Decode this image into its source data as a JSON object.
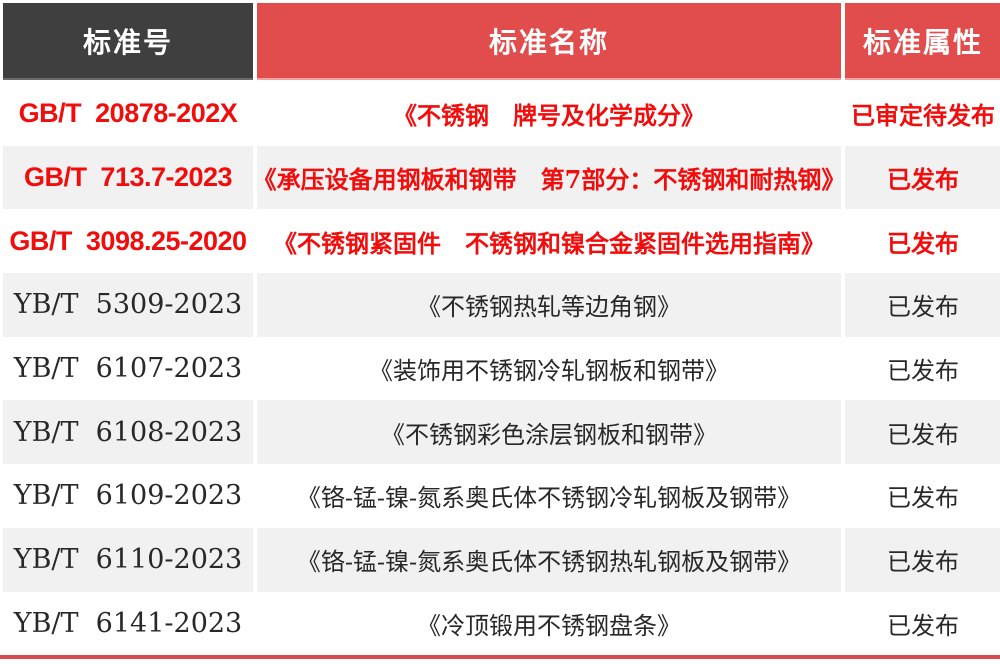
{
  "colors": {
    "header_dark_bg": "#3f3f3f",
    "header_red_bg": "#e14c4c",
    "highlight_text_red": "#f20d0d",
    "body_text": "#282828",
    "alt_row_bg": "#f1f1f1",
    "bottom_rule_red": "#d94c4c"
  },
  "table": {
    "headers": [
      {
        "label": "标准号"
      },
      {
        "label": "标准名称"
      },
      {
        "label": "标准属性"
      }
    ],
    "rows": [
      {
        "no": "GB/T  20878-202X",
        "name": "《不锈钢　牌号及化学成分》",
        "status": "已审定待发布",
        "highlight": true
      },
      {
        "no": "GB/T  713.7-2023",
        "name": "《承压设备用钢板和钢带　第7部分：不锈钢和耐热钢》",
        "status": "已发布",
        "highlight": true
      },
      {
        "no": "GB/T  3098.25-2020",
        "name": "《不锈钢紧固件　不锈钢和镍合金紧固件选用指南》",
        "status": "已发布",
        "highlight": true
      },
      {
        "no": "YB/T  5309-2023",
        "name": "《不锈钢热轧等边角钢》",
        "status": "已发布",
        "highlight": false
      },
      {
        "no": "YB/T  6107-2023",
        "name": "《装饰用不锈钢冷轧钢板和钢带》",
        "status": "已发布",
        "highlight": false
      },
      {
        "no": "YB/T  6108-2023",
        "name": "《不锈钢彩色涂层钢板和钢带》",
        "status": "已发布",
        "highlight": false
      },
      {
        "no": "YB/T  6109-2023",
        "name": "《铬-锰-镍-氮系奥氏体不锈钢冷轧钢板及钢带》",
        "status": "已发布",
        "highlight": false
      },
      {
        "no": "YB/T  6110-2023",
        "name": "《铬-锰-镍-氮系奥氏体不锈钢热轧钢板及钢带》",
        "status": "已发布",
        "highlight": false
      },
      {
        "no": "YB/T  6141-2023",
        "name": "《冷顶锻用不锈钢盘条》",
        "status": "已发布",
        "highlight": false
      }
    ]
  }
}
